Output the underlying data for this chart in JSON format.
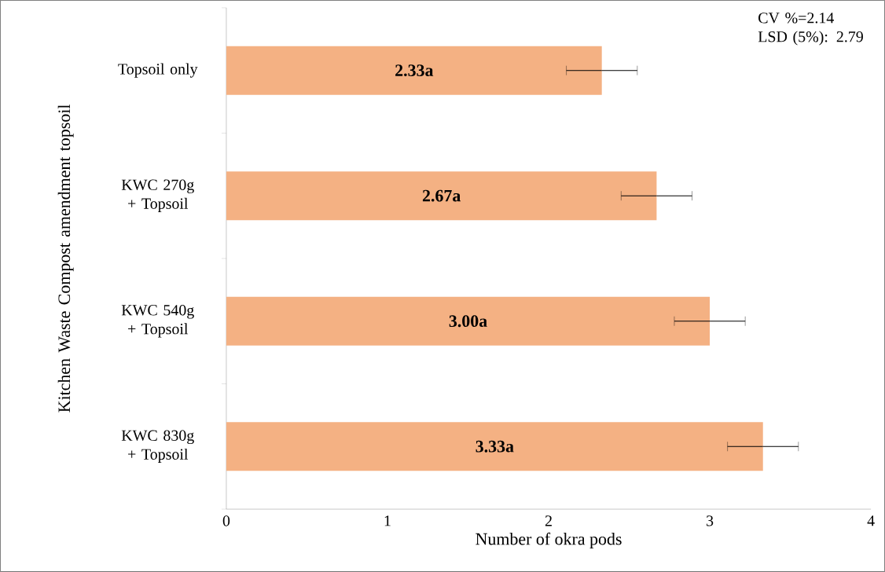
{
  "chart_data": {
    "type": "bar",
    "orientation": "horizontal",
    "xlabel": "Number of okra pods",
    "ylabel": "Kitchen Waste Compost amendment topsoil",
    "categories": [
      "Topsoil only",
      "KWC 270g + Topsoil",
      "KWC 540g + Topsoil",
      "KWC 830g + Topsoil"
    ],
    "values": [
      2.33,
      2.67,
      3.0,
      3.33
    ],
    "errors": [
      0.22,
      0.22,
      0.22,
      0.22
    ],
    "value_labels": [
      "2.33a",
      "2.67a",
      "3.00a",
      "3.33a"
    ],
    "color": "#f4b183",
    "xlim": [
      0,
      4
    ],
    "xticks": [
      0,
      1,
      2,
      3,
      4
    ],
    "annotations": [
      "CV %=2.14",
      "LSD (5%): 2.79"
    ]
  }
}
